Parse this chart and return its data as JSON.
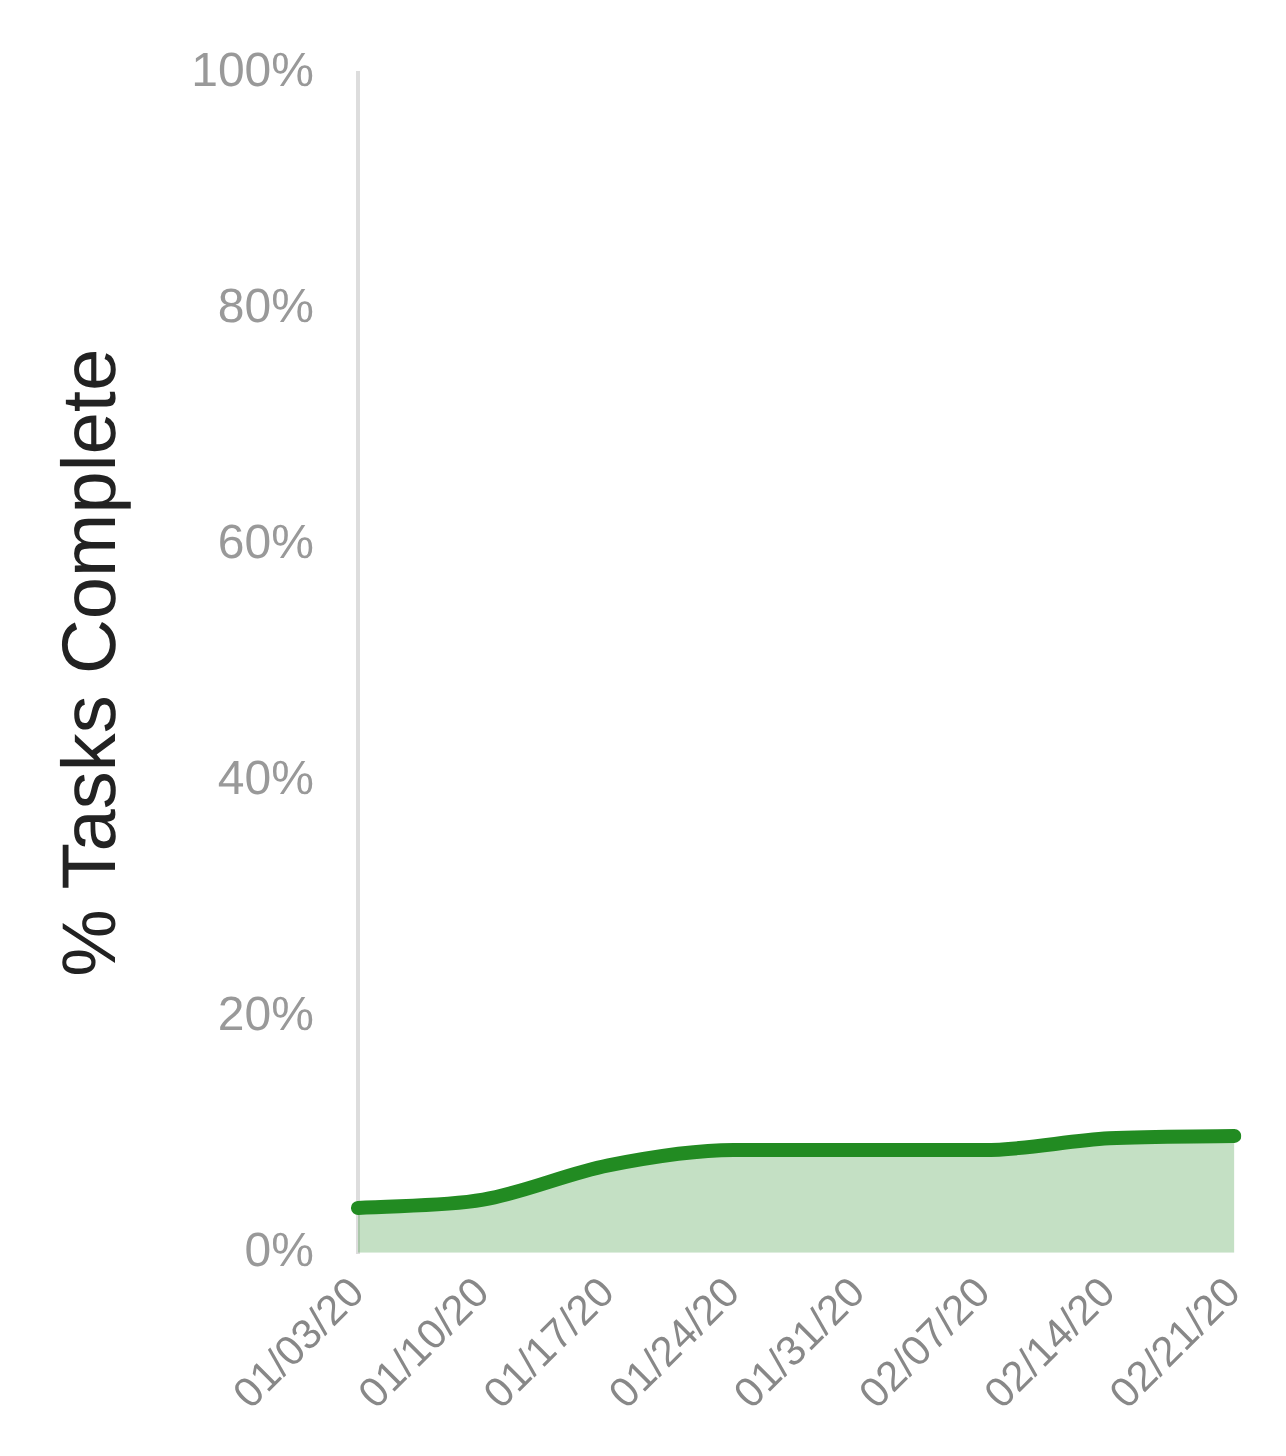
{
  "chart_data": {
    "type": "area",
    "ylabel": "% Tasks Complete",
    "categories": [
      "01/03/20",
      "01/10/20",
      "01/17/20",
      "01/24/20",
      "01/31/20",
      "02/07/20",
      "02/14/20",
      "02/21/20"
    ],
    "series": [
      {
        "color": "#228b22",
        "values": [
          3.8,
          4.5,
          7.4,
          8.7,
          8.7,
          8.7,
          9.7,
          9.9
        ]
      }
    ],
    "ylim": [
      0,
      100
    ],
    "yticks": [
      {
        "value": 0,
        "label": "0%"
      },
      {
        "value": 20,
        "label": "20%"
      },
      {
        "value": 40,
        "label": "40%"
      },
      {
        "value": 60,
        "label": "60%"
      },
      {
        "value": 80,
        "label": "80%"
      },
      {
        "value": 100,
        "label": "100%"
      }
    ],
    "grid": false,
    "legend": false
  }
}
